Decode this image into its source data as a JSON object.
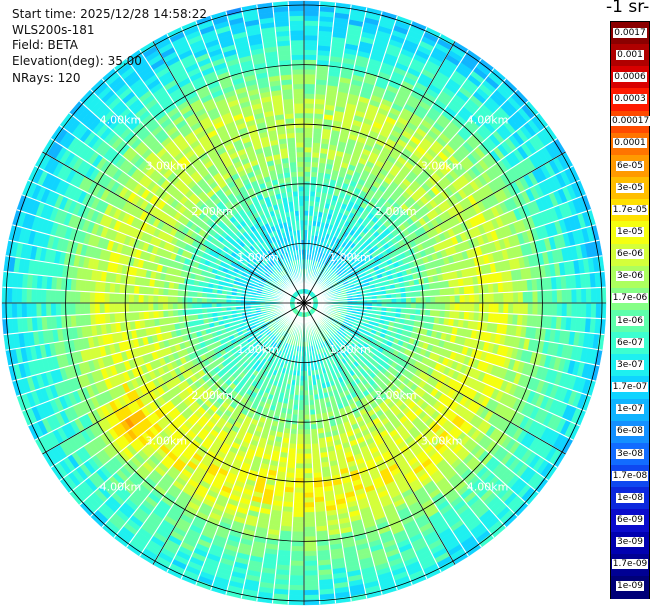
{
  "header": {
    "start_time": "Start time: 2025/12/28 14:58:22",
    "device": "WLS200s-181",
    "field": "Field: BETA",
    "elevation": "Elevation(deg): 35.00",
    "nrays": "NRays: 120"
  },
  "colorbar": {
    "unit_title": "-1 sr-",
    "labels": [
      "0.0017",
      "0.001",
      "0.0006",
      "0.0003",
      "0.00017",
      "0.0001",
      "6e-05",
      "3e-05",
      "1.7e-05",
      "1e-05",
      "6e-06",
      "3e-06",
      "1.7e-06",
      "1e-06",
      "6e-07",
      "3e-07",
      "1.7e-07",
      "1e-07",
      "6e-08",
      "3e-08",
      "1.7e-08",
      "1e-08",
      "6e-09",
      "3e-09",
      "1.7e-09",
      "1e-09"
    ],
    "colors": [
      "#8b0000",
      "#b00000",
      "#d80000",
      "#ff1a00",
      "#ff4a00",
      "#ff7400",
      "#ff9a00",
      "#ffbe00",
      "#ffe000",
      "#f5ff10",
      "#d4ff3a",
      "#acff5e",
      "#86ff86",
      "#5effac",
      "#3cffd0",
      "#1ef0f0",
      "#10d4ff",
      "#10b4ff",
      "#1490ff",
      "#126cff",
      "#0f48f0",
      "#0c28dd",
      "#0a0ccc",
      "#0000b0",
      "#000094",
      "#000078"
    ]
  },
  "chart_data": {
    "type": "heatmap",
    "projection": "polar-ppi",
    "range_ring_labels": [
      "1.00km",
      "2.00km",
      "3.00km",
      "4.00km",
      "5.00km"
    ],
    "ring_distances_km": [
      1,
      2,
      3,
      4,
      5
    ],
    "n_rays": 120,
    "elevation_deg": 35.0,
    "field": "BETA"
  }
}
